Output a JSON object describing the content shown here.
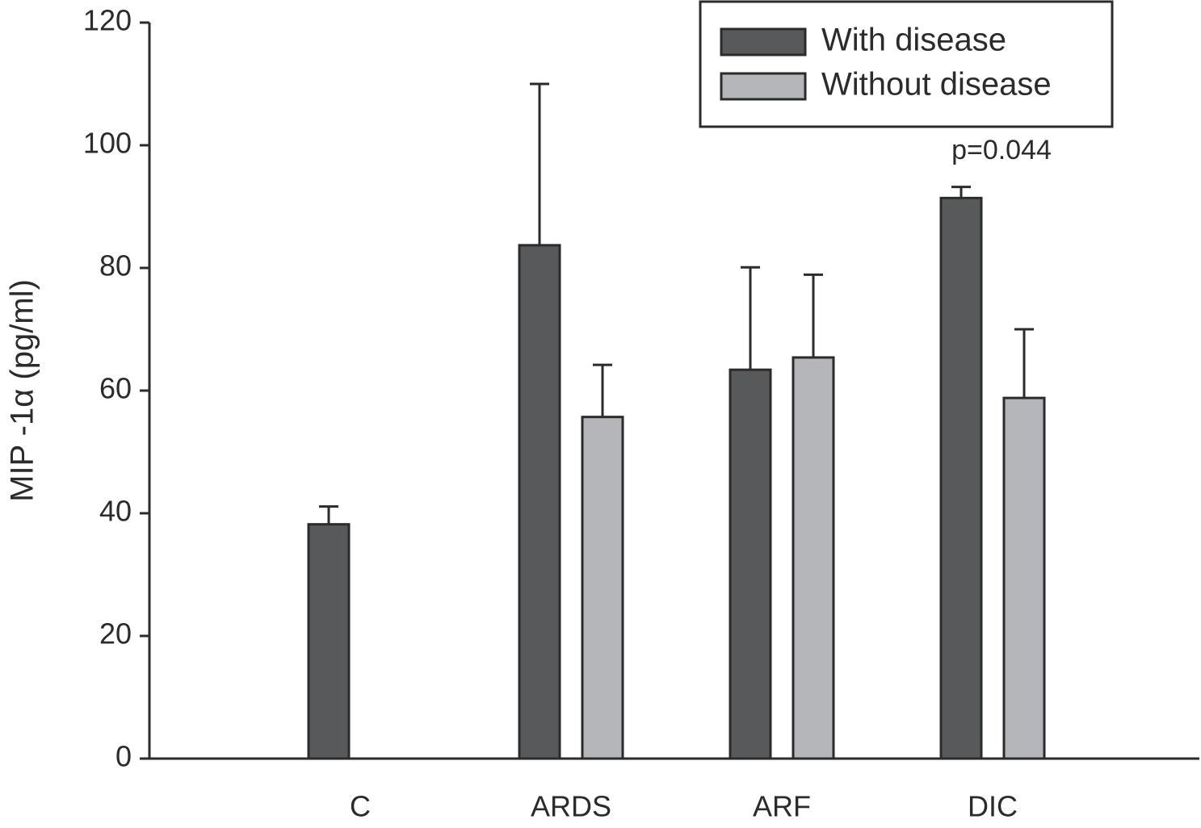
{
  "chart_data": {
    "type": "bar",
    "y_label": "MIP -1α (pg/ml)",
    "categories": [
      "C",
      "ARDS",
      "ARF",
      "DIC"
    ],
    "series": [
      {
        "name": "With disease",
        "color": "#58595b",
        "values": [
          38.2,
          83.7,
          63.4,
          91.4
        ],
        "errors": [
          2.9,
          26.3,
          16.7,
          1.8
        ]
      },
      {
        "name": "Without disease",
        "color": "#b5b6b9",
        "values": [
          null,
          55.7,
          65.4,
          58.8
        ],
        "errors": [
          null,
          8.5,
          13.5,
          11.2
        ]
      }
    ],
    "annotation": "p=0.044",
    "ylim": [
      0,
      120
    ],
    "yticks": [
      0,
      20,
      40,
      60,
      80,
      100,
      120
    ],
    "legend": "upper right"
  }
}
